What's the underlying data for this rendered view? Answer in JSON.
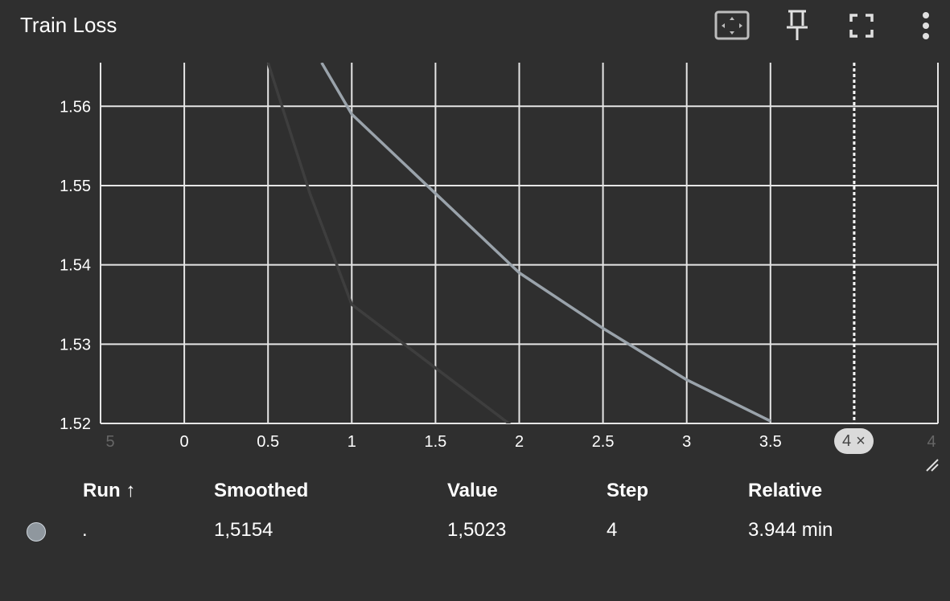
{
  "header": {
    "title": "Train Loss"
  },
  "toolbar": {
    "icons": [
      "fit-domain-icon",
      "pin-icon",
      "fullscreen-icon",
      "more-vert-icon"
    ]
  },
  "chart_data": {
    "type": "line",
    "title": "Train Loss",
    "xlabel": "",
    "ylabel": "",
    "xlim": [
      -0.5,
      4.5
    ],
    "ylim": [
      1.52,
      1.5655
    ],
    "x_ticks": [
      "5",
      "0",
      "0.5",
      "1",
      "1.5",
      "2",
      "2.5",
      "3",
      "3.5",
      "4"
    ],
    "x_tick_values": [
      -0.5,
      0,
      0.5,
      1,
      1.5,
      2,
      2.5,
      3,
      3.5,
      4.5
    ],
    "y_ticks": [
      "1.56",
      "1.55",
      "1.54",
      "1.53",
      "1.52"
    ],
    "y_tick_values": [
      1.56,
      1.55,
      1.54,
      1.53,
      1.52
    ],
    "grid": true,
    "cursor_step": 4,
    "series": [
      {
        "color": "#9aa3ab",
        "x": [
          0.82,
          1,
          1.5,
          2,
          2.5,
          3,
          3.5
        ],
        "y": [
          1.5655,
          1.559,
          1.549,
          1.539,
          1.532,
          1.5255,
          1.5203
        ]
      },
      {
        "color": "#3e3e3e",
        "x": [
          0.5,
          0.75,
          1,
          1.5,
          1.95
        ],
        "y": [
          1.5655,
          1.549,
          1.535,
          1.527,
          1.5198
        ]
      }
    ]
  },
  "cursor_label": {
    "value": "4",
    "close": "×"
  },
  "table": {
    "headers": {
      "run": "Run ↑",
      "smoothed": "Smoothed",
      "value": "Value",
      "step": "Step",
      "relative": "Relative"
    },
    "rows": [
      {
        "dot_color": "#8f979e",
        "run": ".",
        "smoothed": "1,5154",
        "value": "1,5023",
        "step": "4",
        "relative": "3.944 min"
      }
    ]
  }
}
